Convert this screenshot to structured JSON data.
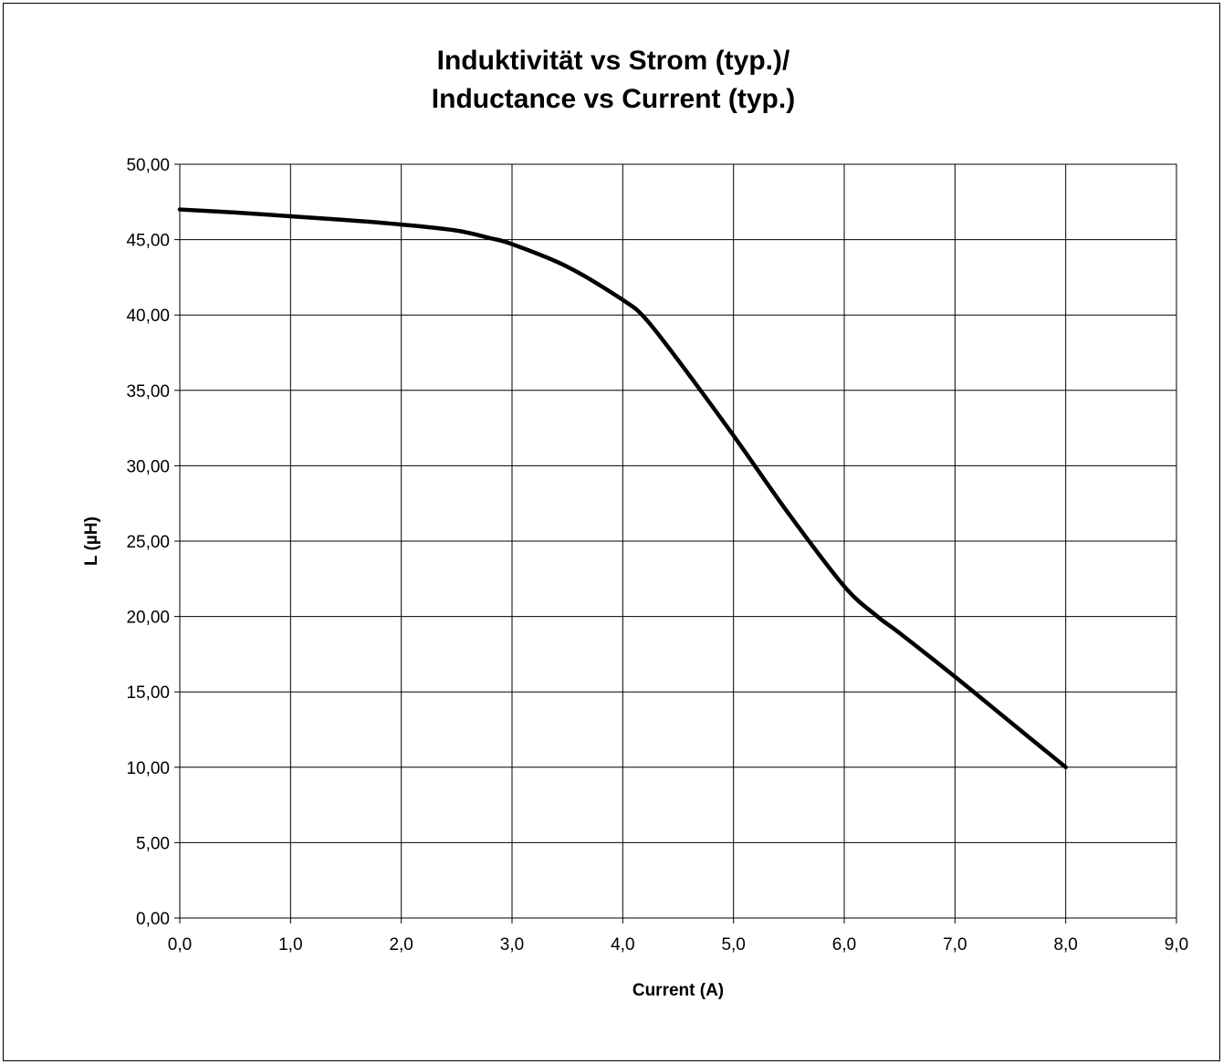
{
  "chart_data": {
    "type": "line",
    "title_lines": [
      "Induktivität vs Strom (typ.)/",
      "Inductance vs Current (typ.)"
    ],
    "xlabel": "Current (A)",
    "ylabel": "L (µH)",
    "xlim": [
      0,
      9
    ],
    "ylim": [
      0,
      50
    ],
    "x_ticks": [
      0,
      1,
      2,
      3,
      4,
      5,
      6,
      7,
      8,
      9
    ],
    "x_tick_labels": [
      "0,0",
      "1,0",
      "2,0",
      "3,0",
      "4,0",
      "5,0",
      "6,0",
      "7,0",
      "8,0",
      "9,0"
    ],
    "y_ticks": [
      0,
      5,
      10,
      15,
      20,
      25,
      30,
      35,
      40,
      45,
      50
    ],
    "y_tick_labels": [
      "0,00",
      "5,00",
      "10,00",
      "15,00",
      "20,00",
      "25,00",
      "30,00",
      "35,00",
      "40,00",
      "45,00",
      "50,00"
    ],
    "grid": true,
    "legend": "none",
    "series": [
      {
        "color": "#000000",
        "x": [
          0.0,
          0.5,
          1.0,
          1.5,
          2.0,
          2.5,
          2.8,
          3.0,
          3.5,
          4.0,
          4.2,
          4.5,
          5.0,
          5.5,
          6.0,
          6.3,
          6.5,
          7.0,
          7.5,
          8.0
        ],
        "y": [
          47.0,
          46.8,
          46.55,
          46.3,
          46.0,
          45.6,
          45.1,
          44.7,
          43.2,
          41.0,
          39.8,
          37.0,
          32.0,
          26.8,
          22.0,
          20.0,
          18.9,
          16.0,
          13.0,
          10.0
        ]
      }
    ]
  }
}
